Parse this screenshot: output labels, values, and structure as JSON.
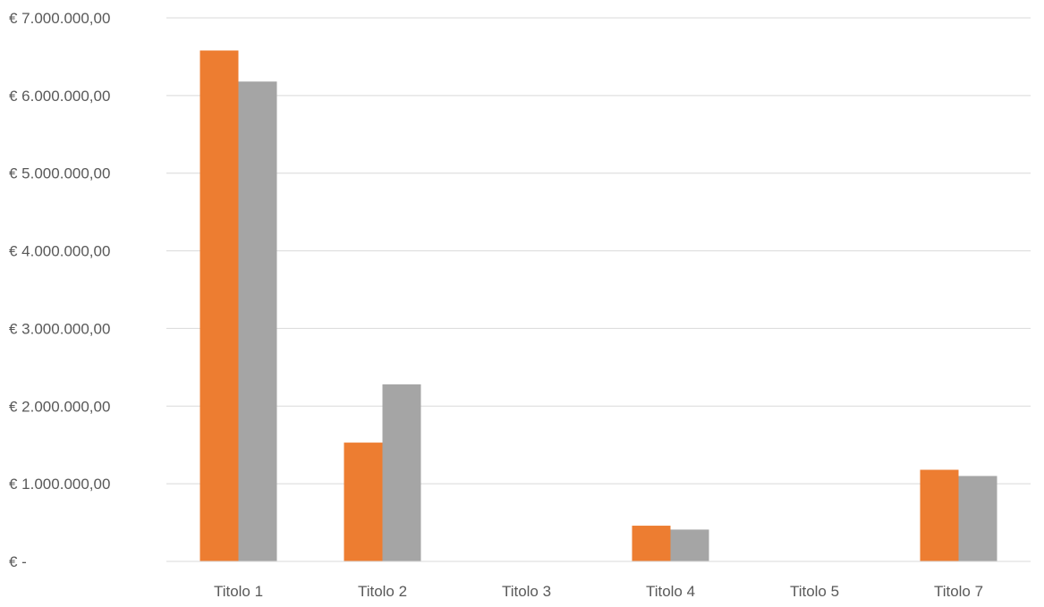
{
  "chart_data": {
    "type": "bar",
    "title": "",
    "xlabel": "",
    "ylabel": "",
    "categories": [
      "Titolo 1",
      "Titolo 2",
      "Titolo 3",
      "Titolo 4",
      "Titolo 5",
      "Titolo 7"
    ],
    "series": [
      {
        "color": "#ED7D31",
        "values": [
          6580000,
          1530000,
          0,
          460000,
          0,
          1180000
        ]
      },
      {
        "color": "#A5A5A5",
        "values": [
          6180000,
          2280000,
          0,
          410000,
          0,
          1100000
        ]
      }
    ],
    "ylim": [
      0,
      7000000
    ],
    "yticks": [
      0,
      1000000,
      2000000,
      3000000,
      4000000,
      5000000,
      6000000,
      7000000
    ],
    "ytick_labels": [
      "€ -",
      "€ 1.000.000,00",
      "€ 2.000.000,00",
      "€ 3.000.000,00",
      "€ 4.000.000,00",
      "€ 5.000.000,00",
      "€ 6.000.000,00",
      "€ 7.000.000,00"
    ],
    "grid": true,
    "legend": "none",
    "gridline_color": "#D9D9D9"
  }
}
